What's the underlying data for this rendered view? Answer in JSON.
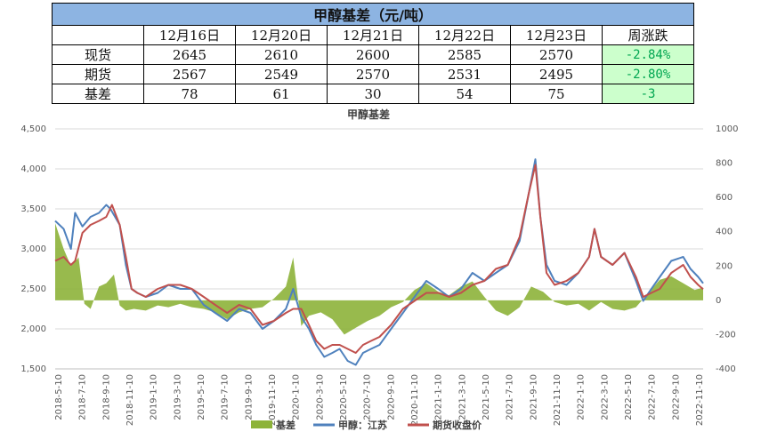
{
  "table": {
    "title": "甲醇基差（元/吨）",
    "headers": [
      "",
      "12月16日",
      "12月20日",
      "12月21日",
      "12月22日",
      "12月23日",
      "周涨跌"
    ],
    "rows": [
      {
        "label": "现货",
        "values": [
          "2645",
          "2610",
          "2600",
          "2585",
          "2570"
        ],
        "change": "-2.84%"
      },
      {
        "label": "期货",
        "values": [
          "2567",
          "2549",
          "2570",
          "2531",
          "2495"
        ],
        "change": "-2.80%"
      },
      {
        "label": "基差",
        "values": [
          "78",
          "61",
          "30",
          "54",
          "75"
        ],
        "change": "-3"
      }
    ]
  },
  "chart_data": {
    "type": "line",
    "title": "甲醇基差",
    "x_tick_labels": [
      "2018-5-10",
      "2018-7-10",
      "2018-9-10",
      "2018-11-10",
      "2019-1-10",
      "2019-3-10",
      "2019-5-10",
      "2019-7-10",
      "2019-9-10",
      "2019-11-10",
      "2020-1-10",
      "2020-3-10",
      "2020-5-10",
      "2020-7-10",
      "2020-9-10",
      "2020-11-10",
      "2021-1-10",
      "2021-3-10",
      "2021-5-10",
      "2021-7-10",
      "2021-9-10",
      "2021-11-10",
      "2022-1-10",
      "2022-3-10",
      "2022-5-10",
      "2022-7-10",
      "2022-9-10",
      "2022-11-10"
    ],
    "y_left": {
      "min": 1500,
      "max": 4500,
      "step": 500,
      "ticks": [
        "1,500",
        "2,000",
        "2,500",
        "3,000",
        "3,500",
        "4,000",
        "4,500"
      ]
    },
    "y_right": {
      "min": -400,
      "max": 1000,
      "step": 200,
      "ticks": [
        "-400",
        "-200",
        "0",
        "200",
        "400",
        "600",
        "800",
        "1000"
      ]
    },
    "x_range": [
      "2018-05-10",
      "2022-12-23"
    ],
    "legend_position": "bottom",
    "series": [
      {
        "name": "基差",
        "kind": "area",
        "axis": "right",
        "color": "#8db33a",
        "points": [
          [
            "2018-05-10",
            450
          ],
          [
            "2018-06-01",
            300
          ],
          [
            "2018-06-20",
            200
          ],
          [
            "2018-07-10",
            250
          ],
          [
            "2018-07-25",
            -20
          ],
          [
            "2018-08-10",
            -50
          ],
          [
            "2018-09-01",
            80
          ],
          [
            "2018-09-20",
            100
          ],
          [
            "2018-10-10",
            150
          ],
          [
            "2018-10-25",
            -30
          ],
          [
            "2018-11-10",
            -60
          ],
          [
            "2018-12-01",
            -50
          ],
          [
            "2019-01-01",
            -60
          ],
          [
            "2019-02-01",
            -30
          ],
          [
            "2019-03-01",
            -40
          ],
          [
            "2019-04-01",
            -20
          ],
          [
            "2019-05-01",
            -40
          ],
          [
            "2019-06-01",
            -50
          ],
          [
            "2019-07-01",
            -70
          ],
          [
            "2019-08-01",
            -110
          ],
          [
            "2019-09-01",
            -70
          ],
          [
            "2019-10-01",
            -50
          ],
          [
            "2019-11-01",
            -40
          ],
          [
            "2019-12-01",
            10
          ],
          [
            "2020-01-01",
            80
          ],
          [
            "2020-01-20",
            250
          ],
          [
            "2020-02-10",
            -150
          ],
          [
            "2020-03-01",
            -90
          ],
          [
            "2020-04-01",
            -70
          ],
          [
            "2020-05-01",
            -110
          ],
          [
            "2020-06-01",
            -200
          ],
          [
            "2020-07-01",
            -160
          ],
          [
            "2020-08-01",
            -120
          ],
          [
            "2020-09-01",
            -90
          ],
          [
            "2020-10-01",
            -40
          ],
          [
            "2020-11-01",
            -10
          ],
          [
            "2020-12-01",
            60
          ],
          [
            "2021-01-01",
            100
          ],
          [
            "2021-02-01",
            50
          ],
          [
            "2021-03-01",
            30
          ],
          [
            "2021-04-01",
            80
          ],
          [
            "2021-05-01",
            110
          ],
          [
            "2021-06-01",
            20
          ],
          [
            "2021-07-01",
            -60
          ],
          [
            "2021-08-01",
            -90
          ],
          [
            "2021-09-01",
            -40
          ],
          [
            "2021-10-01",
            80
          ],
          [
            "2021-11-01",
            50
          ],
          [
            "2021-12-01",
            -10
          ],
          [
            "2022-01-01",
            -30
          ],
          [
            "2022-02-01",
            -20
          ],
          [
            "2022-03-01",
            -60
          ],
          [
            "2022-04-01",
            -10
          ],
          [
            "2022-05-01",
            -50
          ],
          [
            "2022-06-01",
            -60
          ],
          [
            "2022-07-01",
            -40
          ],
          [
            "2022-08-01",
            40
          ],
          [
            "2022-09-01",
            120
          ],
          [
            "2022-10-01",
            140
          ],
          [
            "2022-11-01",
            100
          ],
          [
            "2022-12-01",
            60
          ],
          [
            "2022-12-23",
            75
          ]
        ]
      },
      {
        "name": "甲醇：江苏",
        "kind": "line",
        "axis": "left",
        "color": "#4f81bd",
        "points": [
          [
            "2018-05-10",
            3350
          ],
          [
            "2018-06-01",
            3250
          ],
          [
            "2018-06-20",
            3000
          ],
          [
            "2018-07-01",
            3450
          ],
          [
            "2018-07-20",
            3280
          ],
          [
            "2018-08-10",
            3400
          ],
          [
            "2018-09-01",
            3450
          ],
          [
            "2018-09-20",
            3550
          ],
          [
            "2018-10-01",
            3500
          ],
          [
            "2018-10-25",
            3300
          ],
          [
            "2018-11-10",
            2800
          ],
          [
            "2018-11-25",
            2500
          ],
          [
            "2018-12-10",
            2450
          ],
          [
            "2019-01-01",
            2400
          ],
          [
            "2019-02-01",
            2450
          ],
          [
            "2019-03-01",
            2550
          ],
          [
            "2019-04-01",
            2500
          ],
          [
            "2019-05-01",
            2500
          ],
          [
            "2019-06-01",
            2300
          ],
          [
            "2019-07-01",
            2200
          ],
          [
            "2019-08-01",
            2100
          ],
          [
            "2019-09-01",
            2250
          ],
          [
            "2019-10-01",
            2200
          ],
          [
            "2019-11-01",
            2000
          ],
          [
            "2019-12-01",
            2100
          ],
          [
            "2020-01-01",
            2250
          ],
          [
            "2020-01-20",
            2500
          ],
          [
            "2020-02-10",
            2150
          ],
          [
            "2020-03-01",
            2000
          ],
          [
            "2020-03-20",
            1800
          ],
          [
            "2020-04-10",
            1650
          ],
          [
            "2020-05-01",
            1700
          ],
          [
            "2020-05-20",
            1750
          ],
          [
            "2020-06-10",
            1600
          ],
          [
            "2020-07-01",
            1550
          ],
          [
            "2020-07-20",
            1700
          ],
          [
            "2020-08-10",
            1750
          ],
          [
            "2020-09-01",
            1800
          ],
          [
            "2020-10-01",
            2000
          ],
          [
            "2020-11-01",
            2200
          ],
          [
            "2020-12-01",
            2400
          ],
          [
            "2021-01-01",
            2600
          ],
          [
            "2021-02-01",
            2500
          ],
          [
            "2021-03-01",
            2400
          ],
          [
            "2021-04-01",
            2500
          ],
          [
            "2021-05-01",
            2700
          ],
          [
            "2021-06-01",
            2600
          ],
          [
            "2021-07-01",
            2700
          ],
          [
            "2021-08-01",
            2800
          ],
          [
            "2021-09-01",
            3100
          ],
          [
            "2021-09-25",
            3700
          ],
          [
            "2021-10-12",
            4120
          ],
          [
            "2021-10-25",
            3400
          ],
          [
            "2021-11-10",
            2800
          ],
          [
            "2021-12-01",
            2600
          ],
          [
            "2022-01-01",
            2550
          ],
          [
            "2022-02-01",
            2700
          ],
          [
            "2022-03-01",
            2900
          ],
          [
            "2022-03-15",
            3250
          ],
          [
            "2022-04-01",
            2900
          ],
          [
            "2022-05-01",
            2800
          ],
          [
            "2022-06-01",
            2950
          ],
          [
            "2022-07-01",
            2600
          ],
          [
            "2022-07-20",
            2350
          ],
          [
            "2022-08-10",
            2500
          ],
          [
            "2022-09-01",
            2650
          ],
          [
            "2022-10-01",
            2850
          ],
          [
            "2022-11-01",
            2900
          ],
          [
            "2022-11-20",
            2750
          ],
          [
            "2022-12-10",
            2650
          ],
          [
            "2022-12-23",
            2570
          ]
        ]
      },
      {
        "name": "期货收盘价",
        "kind": "line",
        "axis": "left",
        "color": "#c0504d",
        "points": [
          [
            "2018-05-10",
            2850
          ],
          [
            "2018-06-01",
            2900
          ],
          [
            "2018-06-20",
            2800
          ],
          [
            "2018-07-01",
            2850
          ],
          [
            "2018-07-20",
            3200
          ],
          [
            "2018-08-10",
            3300
          ],
          [
            "2018-09-01",
            3350
          ],
          [
            "2018-09-20",
            3400
          ],
          [
            "2018-10-05",
            3550
          ],
          [
            "2018-10-25",
            3300
          ],
          [
            "2018-11-10",
            2900
          ],
          [
            "2018-11-25",
            2500
          ],
          [
            "2018-12-10",
            2450
          ],
          [
            "2019-01-01",
            2400
          ],
          [
            "2019-02-01",
            2500
          ],
          [
            "2019-03-01",
            2550
          ],
          [
            "2019-04-01",
            2550
          ],
          [
            "2019-05-01",
            2500
          ],
          [
            "2019-06-01",
            2400
          ],
          [
            "2019-07-01",
            2300
          ],
          [
            "2019-08-01",
            2200
          ],
          [
            "2019-09-01",
            2300
          ],
          [
            "2019-10-01",
            2250
          ],
          [
            "2019-11-01",
            2050
          ],
          [
            "2019-12-01",
            2100
          ],
          [
            "2020-01-01",
            2200
          ],
          [
            "2020-01-20",
            2250
          ],
          [
            "2020-02-10",
            2250
          ],
          [
            "2020-03-01",
            2050
          ],
          [
            "2020-03-20",
            1850
          ],
          [
            "2020-04-10",
            1750
          ],
          [
            "2020-05-01",
            1800
          ],
          [
            "2020-05-20",
            1800
          ],
          [
            "2020-06-10",
            1750
          ],
          [
            "2020-07-01",
            1700
          ],
          [
            "2020-07-20",
            1800
          ],
          [
            "2020-08-10",
            1850
          ],
          [
            "2020-09-01",
            1900
          ],
          [
            "2020-10-01",
            2050
          ],
          [
            "2020-11-01",
            2250
          ],
          [
            "2020-12-01",
            2350
          ],
          [
            "2021-01-01",
            2450
          ],
          [
            "2021-02-01",
            2450
          ],
          [
            "2021-03-01",
            2400
          ],
          [
            "2021-04-01",
            2450
          ],
          [
            "2021-05-01",
            2550
          ],
          [
            "2021-06-01",
            2600
          ],
          [
            "2021-07-01",
            2750
          ],
          [
            "2021-08-01",
            2800
          ],
          [
            "2021-09-01",
            3150
          ],
          [
            "2021-09-25",
            3700
          ],
          [
            "2021-10-12",
            4050
          ],
          [
            "2021-10-25",
            3400
          ],
          [
            "2021-11-10",
            2700
          ],
          [
            "2021-12-01",
            2550
          ],
          [
            "2022-01-01",
            2600
          ],
          [
            "2022-02-01",
            2700
          ],
          [
            "2022-03-01",
            2900
          ],
          [
            "2022-03-15",
            3250
          ],
          [
            "2022-04-01",
            2900
          ],
          [
            "2022-05-01",
            2800
          ],
          [
            "2022-06-01",
            2950
          ],
          [
            "2022-07-01",
            2650
          ],
          [
            "2022-07-20",
            2400
          ],
          [
            "2022-08-10",
            2450
          ],
          [
            "2022-09-01",
            2500
          ],
          [
            "2022-10-01",
            2700
          ],
          [
            "2022-11-01",
            2800
          ],
          [
            "2022-11-20",
            2650
          ],
          [
            "2022-12-10",
            2550
          ],
          [
            "2022-12-23",
            2495
          ]
        ]
      }
    ]
  }
}
